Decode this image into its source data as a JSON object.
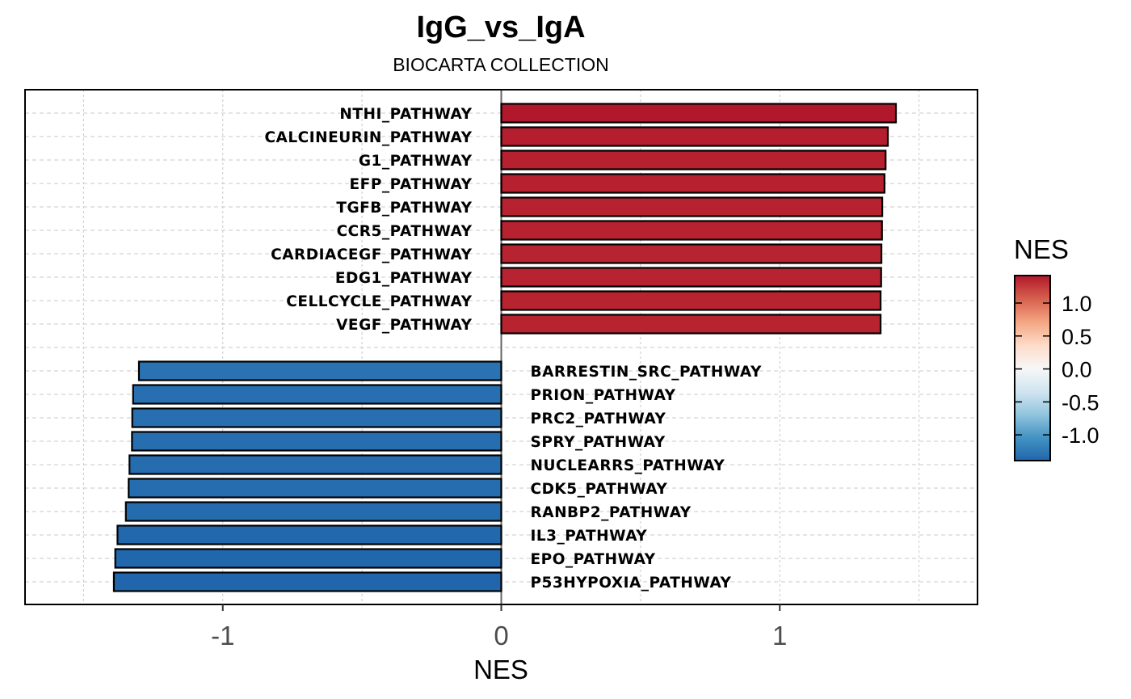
{
  "chart_data": {
    "type": "bar",
    "orientation": "horizontal",
    "title": "IgG_vs_IgA",
    "subtitle": "BIOCARTA COLLECTION",
    "xlabel": "NES",
    "ylabel": "",
    "xlim": [
      -1.71,
      1.71
    ],
    "x_ticks": [
      -1,
      0,
      1
    ],
    "x_tick_labels": [
      "-1",
      "0",
      "1"
    ],
    "x_minor_gridlines": [
      -1.5,
      -0.5,
      0.5,
      1.5
    ],
    "grid": true,
    "categories": [
      "NTHI_PATHWAY",
      "CALCINEURIN_PATHWAY",
      "G1_PATHWAY",
      "EFP_PATHWAY",
      "TGFB_PATHWAY",
      "CCR5_PATHWAY",
      "CARDIACEGF_PATHWAY",
      "EDG1_PATHWAY",
      "CELLCYCLE_PATHWAY",
      "VEGF_PATHWAY",
      "BARRESTIN_SRC_PATHWAY",
      "PRION_PATHWAY",
      "PRC2_PATHWAY",
      "SPRY_PATHWAY",
      "NUCLEARRS_PATHWAY",
      "CDK5_PATHWAY",
      "RANBP2_PATHWAY",
      "IL3_PATHWAY",
      "EPO_PATHWAY",
      "P53HYPOXIA_PATHWAY"
    ],
    "values": [
      1.417,
      1.388,
      1.38,
      1.376,
      1.368,
      1.367,
      1.365,
      1.364,
      1.362,
      1.362,
      -1.301,
      -1.322,
      -1.325,
      -1.326,
      -1.335,
      -1.338,
      -1.348,
      -1.378,
      -1.386,
      -1.391
    ],
    "legend": {
      "title": "NES",
      "type": "colorbar",
      "placement": "right",
      "range": [
        -1.391,
        1.417
      ],
      "ticks": [
        1.0,
        0.5,
        0.0,
        -0.5,
        -1.0
      ],
      "tick_labels": [
        "1.0",
        "0.5",
        "0.0",
        "-0.5",
        "-1.0"
      ],
      "palette": [
        "#2166ac",
        "#4393c3",
        "#92c5de",
        "#d1e5f0",
        "#f7f7f7",
        "#fddbc7",
        "#f4a582",
        "#d6604d",
        "#b2182b"
      ]
    }
  }
}
